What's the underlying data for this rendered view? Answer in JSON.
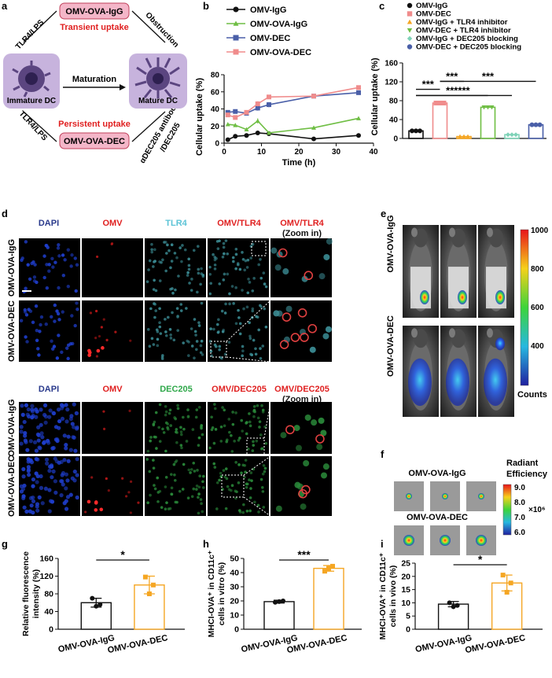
{
  "panel_letters": [
    "a",
    "b",
    "c",
    "d",
    "e",
    "f",
    "g",
    "h",
    "i"
  ],
  "panel_a": {
    "top_pill": "OMV-OVA-IgG",
    "bottom_pill": "OMV-OVA-DEC",
    "transient": "Transient uptake",
    "persistent": "Persistent uptake",
    "left_top": "TLR4/LPS",
    "left_bottom": "TLR4/LPS",
    "right_top": "Obstruction",
    "right_bottom_1": "αDEC205 antibody",
    "right_bottom_2": "/DEC205",
    "immature": "Immature DC",
    "mature": "Mature DC",
    "arrow": "Maturation",
    "colors": {
      "pill": "#f4b6c8",
      "cell_box": "#c7b3dd",
      "red_text": "#e02020"
    }
  },
  "panel_d": {
    "header1": [
      "DAPI",
      "OMV",
      "TLR4",
      "OMV/TLR4",
      "OMV/TLR4 (Zoom in)"
    ],
    "header2": [
      "DAPI",
      "OMV",
      "DEC205",
      "OMV/DEC205",
      "OMV/DEC205 (Zoom in)"
    ],
    "row_labels": [
      "OMV-OVA-IgG",
      "OMV-OVA-DEC",
      "OMV-OVA-IgG",
      "OMV-OVA-DEC"
    ]
  },
  "panel_e": {
    "row_labels": [
      "OMV-OVA-IgG",
      "OMV-OVA-DEC"
    ],
    "scale_ticks": [
      "1000",
      "800",
      "600",
      "400"
    ],
    "scale_label": "Counts"
  },
  "panel_f": {
    "row_labels": [
      "OMV-OVA-IgG",
      "OMV-OVA-DEC"
    ],
    "title_1": "Radiant",
    "title_2": "Efficiency",
    "ticks": [
      "9.0",
      "8.0",
      "7.0",
      "6.0"
    ],
    "unit": "×10⁶"
  },
  "chart_data": [
    {
      "panel": "b",
      "type": "line",
      "xlabel": "Time (h)",
      "ylabel": "Cellular uptake (%)",
      "xlim": [
        0,
        40
      ],
      "ylim": [
        0,
        80
      ],
      "xticks": [
        0,
        10,
        20,
        30,
        40
      ],
      "yticks": [
        0,
        20,
        40,
        60,
        80
      ],
      "legend_position": "top",
      "series": [
        {
          "name": "OMV-IgG",
          "color": "#111111",
          "marker": "circle",
          "x": [
            1,
            3,
            6,
            9,
            12,
            24,
            36
          ],
          "y": [
            4,
            8,
            9,
            12,
            11,
            5,
            9
          ],
          "err": [
            0,
            0,
            0,
            0,
            0,
            0,
            0
          ]
        },
        {
          "name": "OMV-OVA-IgG",
          "color": "#6fbe44",
          "marker": "triangle",
          "x": [
            1,
            3,
            6,
            9,
            12,
            24,
            36
          ],
          "y": [
            22,
            21,
            16,
            26,
            12,
            18,
            29
          ],
          "err": [
            2,
            2,
            2,
            3,
            2,
            1,
            1
          ]
        },
        {
          "name": "OMV-DEC",
          "color": "#4a5fa8",
          "marker": "square",
          "x": [
            1,
            3,
            6,
            9,
            12,
            24,
            36
          ],
          "y": [
            36,
            37,
            35,
            41,
            45,
            55,
            59
          ],
          "err": [
            2,
            2,
            2,
            3,
            3,
            1,
            2
          ]
        },
        {
          "name": "OMV-OVA-DEC",
          "color": "#f08c8c",
          "marker": "square",
          "x": [
            1,
            3,
            6,
            9,
            12,
            24,
            36
          ],
          "y": [
            33,
            30,
            36,
            46,
            54,
            55,
            65
          ],
          "err": [
            2,
            2,
            2,
            3,
            2,
            1,
            1
          ]
        }
      ]
    },
    {
      "panel": "c",
      "type": "bar",
      "ylabel": "Cellular uptake (%)",
      "ylim": [
        0,
        160
      ],
      "yticks": [
        0,
        40,
        80,
        120,
        160
      ],
      "categories": [
        "OMV-IgG",
        "OMV-DEC",
        "OMV-IgG + TLR4 inhibitor",
        "OMV-DEC + TLR4 inhibitor",
        "OMV-IgG + DEC205 blocking",
        "OMV-DEC + DEC205 blocking"
      ],
      "values": [
        16,
        75,
        4,
        66,
        8,
        29
      ],
      "colors": [
        "#111111",
        "#f08c8c",
        "#f5a623",
        "#6fbe44",
        "#7fd3b8",
        "#4a5fa8"
      ],
      "markers": [
        "circle",
        "square",
        "triangle",
        "triangle-down",
        "diamond",
        "circle"
      ],
      "significance": [
        {
          "label": "***",
          "from": 0,
          "to": 1
        },
        {
          "label": "***",
          "from": 0,
          "to": 3
        },
        {
          "label": "***",
          "from": 0,
          "to": 4
        },
        {
          "label": "***",
          "from": 1,
          "to": 2
        },
        {
          "label": "***",
          "from": 1,
          "to": 5
        }
      ]
    },
    {
      "panel": "g",
      "type": "bar",
      "ylabel": "Relative fluorescence intensity (%)",
      "ylim": [
        0,
        160
      ],
      "yticks": [
        0,
        40,
        80,
        120,
        160
      ],
      "categories": [
        "OMV-OVA-IgG",
        "OMV-OVA-DEC"
      ],
      "values": [
        60,
        100
      ],
      "err": [
        10,
        20
      ],
      "points": [
        [
          70,
          56,
          52
        ],
        [
          118,
          100,
          80
        ]
      ],
      "colors": [
        "#111111",
        "#f5a623"
      ],
      "significance": "*"
    },
    {
      "panel": "h",
      "type": "bar",
      "ylabel": "MHCI-OVA⁺ in CD11c⁺ cells in vitro (%)",
      "ylim": [
        0,
        50
      ],
      "yticks": [
        0,
        10,
        20,
        30,
        40,
        50
      ],
      "categories": [
        "OMV-OVA-IgG",
        "OMV-OVA-DEC"
      ],
      "values": [
        19.5,
        43
      ],
      "err": [
        1,
        2
      ],
      "points": [
        [
          19,
          20,
          19.5
        ],
        [
          41,
          44.5,
          43
        ]
      ],
      "colors": [
        "#111111",
        "#f5a623"
      ],
      "significance": "***"
    },
    {
      "panel": "i",
      "type": "bar",
      "ylabel": "MHCI-OVA⁺ in CD11c⁺ cells in vivo (%)",
      "ylim": [
        0,
        25
      ],
      "yticks": [
        0,
        5,
        10,
        15,
        20,
        25
      ],
      "categories": [
        "OMV-OVA-IgG",
        "OMV-OVA-DEC"
      ],
      "values": [
        9.5,
        17.5
      ],
      "err": [
        1,
        3
      ],
      "points": [
        [
          10,
          9,
          8.5
        ],
        [
          20.5,
          17.5,
          14
        ]
      ],
      "colors": [
        "#111111",
        "#f5a623"
      ],
      "significance": "*"
    }
  ]
}
